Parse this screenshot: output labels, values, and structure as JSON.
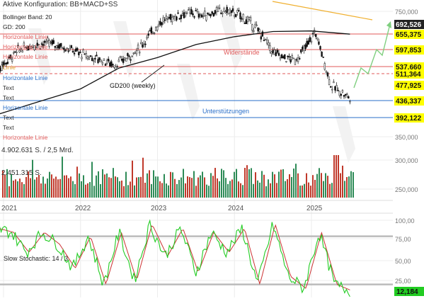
{
  "header": {
    "config_title": "Aktive Konfiguration: BB+MACD+SS",
    "bollinger_label": "Bollinger Band: 20",
    "gd_label": "GD: 200"
  },
  "main_panel": {
    "horizontal_line_labels": [
      "Horizontale Linie",
      "Horizontale Linie",
      "Horizontale Linie",
      "Horizontale Linie",
      "Horizontale Linie",
      "Horizontale Linie",
      "Horizontale Linie"
    ],
    "text_labels": [
      "Text",
      "Text",
      "Text",
      "Text",
      "Text"
    ],
    "linie_label": "Linie",
    "widerstaende_label": "Widerstände",
    "unterstuetzungen_label": "Unterstützungen",
    "gd200_label": "GD200 (weekly)",
    "y_ticks": [
      "750,000",
      "350,000",
      "300,000",
      "250,000"
    ],
    "level_tags": [
      {
        "text": "692,526",
        "kind": "dark"
      },
      {
        "text": "655,375",
        "kind": "yellow"
      },
      {
        "text": "597,853",
        "kind": "yellow"
      },
      {
        "text": "537,660",
        "kind": "yellow"
      },
      {
        "text": "511,364",
        "kind": "yellow"
      },
      {
        "text": "477,925",
        "kind": "yellow"
      },
      {
        "text": "436,337",
        "kind": "yellow"
      },
      {
        "text": "392,122",
        "kind": "yellow"
      }
    ]
  },
  "volume_panel": {
    "max_label": "4.902.631 S. / 2,5 Mrd.",
    "mid_label": "2.451.315 S."
  },
  "x_axis": {
    "labels": [
      "2021",
      "2022",
      "2023",
      "2024",
      "2025"
    ]
  },
  "stochastic_panel": {
    "label": "Slow Stochastic: 14 / 3",
    "y_ticks": [
      "100,00",
      "75,00",
      "50,00",
      "25,00"
    ],
    "last_value": "12,184"
  },
  "colors": {
    "up": "#2e8b57",
    "down": "#c0392b",
    "resistance": "#e05a5a",
    "support": "#2a6fc9",
    "trendline": "#f0b030",
    "projection": "#7fcf7f",
    "tag_yellow": "#ffff00",
    "tag_dark": "#222222",
    "stoch_fast": "#22cc22",
    "stoch_slow": "#cc3333"
  },
  "chart_data": [
    {
      "type": "line",
      "title": "",
      "series_kind": "candlestick",
      "x": [
        "2021",
        "2022",
        "2023",
        "2024",
        "2025"
      ],
      "y_axis_ticks": [
        750,
        350,
        300,
        250
      ],
      "horizontal_levels": [
        692.526,
        655.375,
        597.853,
        537.66,
        511.364,
        477.925,
        436.337,
        392.122
      ],
      "approx_price_series": {
        "times": [
          2020.9,
          2021.0,
          2021.2,
          2021.4,
          2021.6,
          2021.8,
          2022.0,
          2022.15,
          2022.3,
          2022.45,
          2022.6,
          2022.75,
          2022.9,
          2023.05,
          2023.2,
          2023.35,
          2023.5,
          2023.6,
          2023.75,
          2023.9,
          2024.05,
          2024.2,
          2024.35,
          2024.5,
          2024.65,
          2024.8,
          2024.95,
          2025.05,
          2025.15,
          2025.25,
          2025.32,
          2025.4,
          2025.5
        ],
        "values": [
          545,
          575,
          630,
          650,
          655,
          640,
          615,
          600,
          590,
          570,
          600,
          630,
          690,
          740,
          755,
          770,
          770,
          760,
          775,
          780,
          765,
          735,
          690,
          620,
          600,
          590,
          650,
          700,
          600,
          495,
          480,
          465,
          445
        ]
      },
      "gd200_weekly": {
        "times": [
          2020.9,
          2021.5,
          2022.0,
          2022.5,
          2023.0,
          2023.5,
          2024.0,
          2024.5,
          2025.0,
          2025.5
        ],
        "values": [
          380,
          435,
          480,
          560,
          600,
          650,
          680,
          700,
          702,
          690
        ]
      }
    },
    {
      "type": "bar",
      "title": "",
      "volume_max_label": "4.902.631 S. / 2,5 Mrd.",
      "volume_mid_label": "2.451.315 S.",
      "note": "weekly volume bars, green = up week, red = down week"
    },
    {
      "type": "line",
      "title": "Slow Stochastic: 14 / 3",
      "ylim": [
        0,
        100
      ],
      "reference_levels": [
        80,
        20
      ],
      "last_value": 12.184,
      "times": [
        2020.9,
        2021.1,
        2021.3,
        2021.5,
        2021.7,
        2021.9,
        2022.1,
        2022.3,
        2022.5,
        2022.7,
        2022.9,
        2023.1,
        2023.3,
        2023.5,
        2023.7,
        2023.9,
        2024.1,
        2024.3,
        2024.5,
        2024.7,
        2024.9,
        2025.1,
        2025.3,
        2025.5
      ],
      "values": [
        90,
        85,
        60,
        85,
        70,
        40,
        80,
        20,
        85,
        25,
        95,
        55,
        90,
        35,
        85,
        60,
        90,
        20,
        95,
        30,
        15,
        85,
        20,
        12
      ]
    }
  ]
}
